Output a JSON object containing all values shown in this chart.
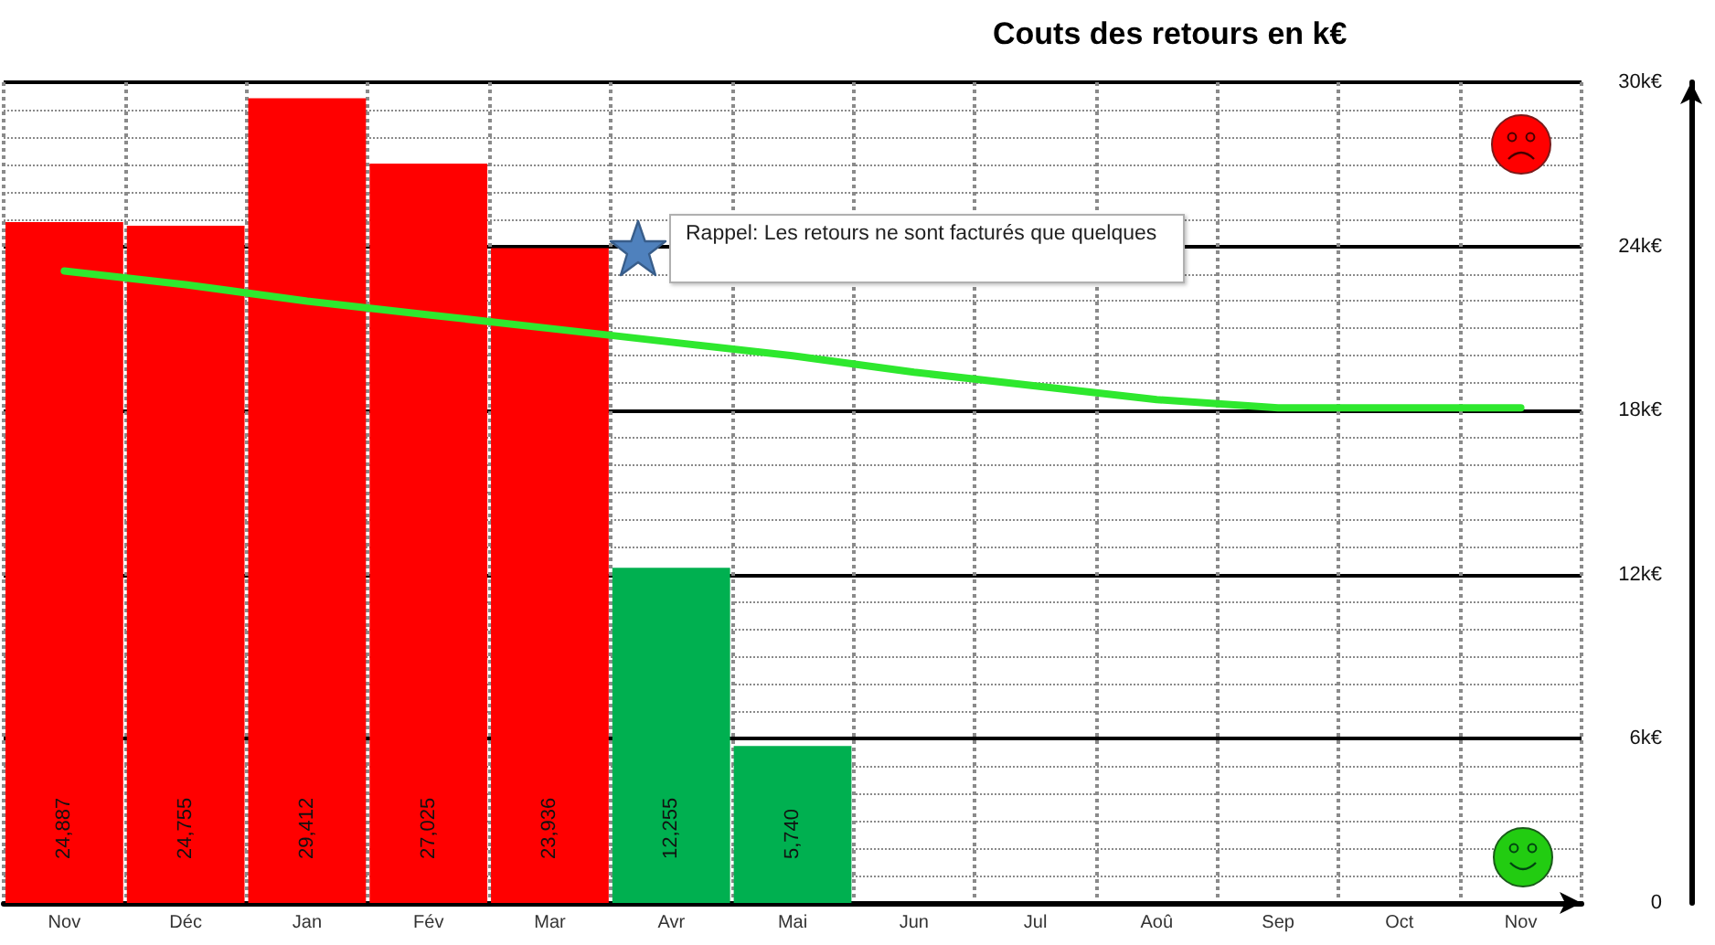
{
  "chart_data": {
    "type": "bar",
    "title": "Couts des retours en k€",
    "categories": [
      "Nov",
      "Déc",
      "Jan",
      "Fév",
      "Mar",
      "Avr",
      "Mai",
      "Jun",
      "Jul",
      "Aoû",
      "Sep",
      "Oct",
      "Nov"
    ],
    "series": [
      {
        "values": [
          24887,
          24755,
          29412,
          27025,
          23936,
          12255,
          5740,
          null,
          null,
          null,
          null,
          null,
          null
        ],
        "colors": [
          "#ff0000",
          "#ff0000",
          "#ff0000",
          "#ff0000",
          "#ff0000",
          "#00b050",
          "#00b050",
          "#ff0000",
          "#ff0000",
          "#ff0000",
          "#ff0000",
          "#ff0000",
          "#ff0000"
        ],
        "value_labels": [
          "24,887",
          "24,755",
          "29,412",
          "27,025",
          "23,936",
          "12,255",
          "5,740",
          null,
          null,
          null,
          null,
          null,
          null
        ]
      },
      {
        "type": "line",
        "color": "#2ee82e",
        "values": [
          23100,
          22600,
          22000,
          21500,
          21000,
          20500,
          20000,
          19400,
          18900,
          18400,
          18100,
          18100,
          18100
        ]
      }
    ],
    "ylim": [
      0,
      30000
    ],
    "yticks": [
      0,
      {
        "value": 6000,
        "label": "6k€"
      },
      {
        "value": 12000,
        "label": "12k€"
      },
      {
        "value": 18000,
        "label": "18k€"
      },
      {
        "value": 24000,
        "label": "24k€"
      },
      {
        "value": 30000,
        "label": "30k€"
      }
    ],
    "grid": true,
    "marker": "none",
    "annotations": [
      "Rappel: Les retours ne sont facturés que quelques"
    ]
  }
}
